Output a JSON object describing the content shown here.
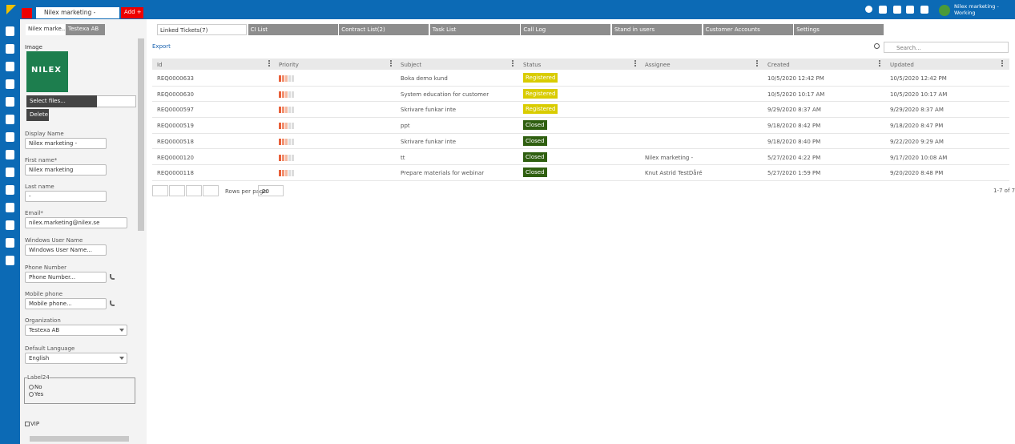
{
  "topbar": {
    "tab": "Nilex marketing -",
    "add": "Add +",
    "user": "Nilex marketing -",
    "status": "Working"
  },
  "left_tabs": [
    "Nilex marke...",
    "Testexa AB"
  ],
  "form": {
    "image_label": "Image",
    "logo": "NILEX",
    "select_files": "Select files...",
    "delete": "Delete",
    "fields": [
      {
        "label": "Display Name",
        "value": "Nilex marketing -"
      },
      {
        "label": "First name*",
        "value": "Nilex marketing"
      },
      {
        "label": "Last name",
        "value": "-"
      },
      {
        "label": "Email*",
        "value": "nilex.marketing@nilex.se"
      },
      {
        "label": "Windows User Name",
        "value": "Windows User Name..."
      },
      {
        "label": "Phone Number",
        "value": "Phone Number..."
      },
      {
        "label": "Mobile phone",
        "value": "Mobile phone..."
      },
      {
        "label": "Organization",
        "value": "Testexa AB"
      },
      {
        "label": "Default Language",
        "value": "English"
      }
    ],
    "radio_group": {
      "label": "Label24",
      "options": [
        "No",
        "Yes"
      ]
    },
    "vip": "VIP"
  },
  "tabs": [
    "Linked Tickets(7)",
    "CI List",
    "Contract List(2)",
    "Task List",
    "Call Log",
    "Stand in users",
    "Customer Accounts",
    "Settings"
  ],
  "export": "Export",
  "search": "Search...",
  "table": {
    "columns": [
      "Id",
      "Priority",
      "Subject",
      "Status",
      "Assignee",
      "Created",
      "Updated"
    ],
    "rows": [
      {
        "id": "REQ0000633",
        "subject": "Boka demo kund",
        "status": "Registered",
        "created": "10/5/2020 12:42 PM",
        "updated": "10/5/2020 12:42 PM"
      },
      {
        "id": "REQ0000630",
        "subject": "System education for customer",
        "status": "Registered",
        "created": "10/5/2020 10:17 AM",
        "updated": "10/5/2020 10:17 AM"
      },
      {
        "id": "REQ0000597",
        "subject": "Skrivare funkar inte",
        "status": "Registered",
        "created": "9/29/2020 8:37 AM",
        "updated": "9/29/2020 8:37 AM"
      },
      {
        "id": "REQ0000519",
        "subject": "ppt",
        "status": "Closed",
        "created": "9/18/2020 8:42 PM",
        "updated": "9/18/2020 8:47 PM"
      },
      {
        "id": "REQ0000518",
        "subject": "Skrivare funkar inte",
        "status": "Closed",
        "created": "9/18/2020 8:40 PM",
        "updated": "9/22/2020 9:29 AM"
      },
      {
        "id": "REQ0000120",
        "subject": "tt",
        "status": "Closed",
        "assignee": "Nilex marketing -",
        "created": "5/27/2020 4:22 PM",
        "updated": "9/17/2020 10:08 AM"
      },
      {
        "id": "REQ0000118",
        "subject": "Prepare materials for webinar",
        "status": "Closed",
        "assignee": "Knut Astrid TestDåré",
        "created": "5/27/2020 1:59 PM",
        "updated": "9/20/2020 8:48 PM"
      }
    ]
  },
  "pager": {
    "rows_per_page_label": "Rows per page:",
    "rows_per_page": 20,
    "count": "1-7 of 7"
  }
}
